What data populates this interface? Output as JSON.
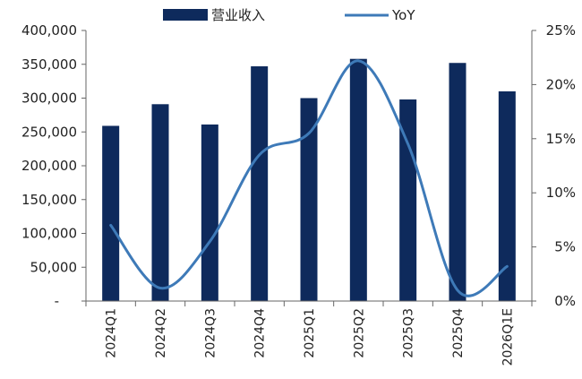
{
  "chart_data": {
    "type": "bar",
    "categories": [
      "2024Q1",
      "2024Q2",
      "2024Q3",
      "2024Q4",
      "2025Q1",
      "2025Q2",
      "2025Q3",
      "2025Q4",
      "2026Q1E"
    ],
    "series": [
      {
        "name": "营业收入",
        "type": "bar",
        "axis": "left",
        "color": "#0e2a5c",
        "values": [
          259000,
          291000,
          261000,
          347000,
          300000,
          358000,
          298000,
          352000,
          310000
        ]
      },
      {
        "name": "YoY",
        "type": "line",
        "axis": "right",
        "color": "#3e7ab8",
        "values": [
          7.0,
          1.2,
          5.5,
          13.5,
          15.5,
          22.2,
          14.5,
          1.0,
          3.2
        ]
      }
    ],
    "y_left": {
      "ylim": [
        0,
        400000
      ],
      "ticks": [
        0,
        50000,
        100000,
        150000,
        200000,
        250000,
        300000,
        350000,
        400000
      ],
      "tick_labels": [
        "-",
        "50,000",
        "100,000",
        "150,000",
        "200,000",
        "250,000",
        "300,000",
        "350,000",
        "400,000"
      ]
    },
    "y_right": {
      "ylim": [
        0,
        25
      ],
      "ticks": [
        0,
        5,
        10,
        15,
        20,
        25
      ],
      "tick_labels": [
        "0%",
        "5%",
        "10%",
        "15%",
        "20%",
        "25%"
      ]
    },
    "legend": "top-center",
    "grid": false
  }
}
